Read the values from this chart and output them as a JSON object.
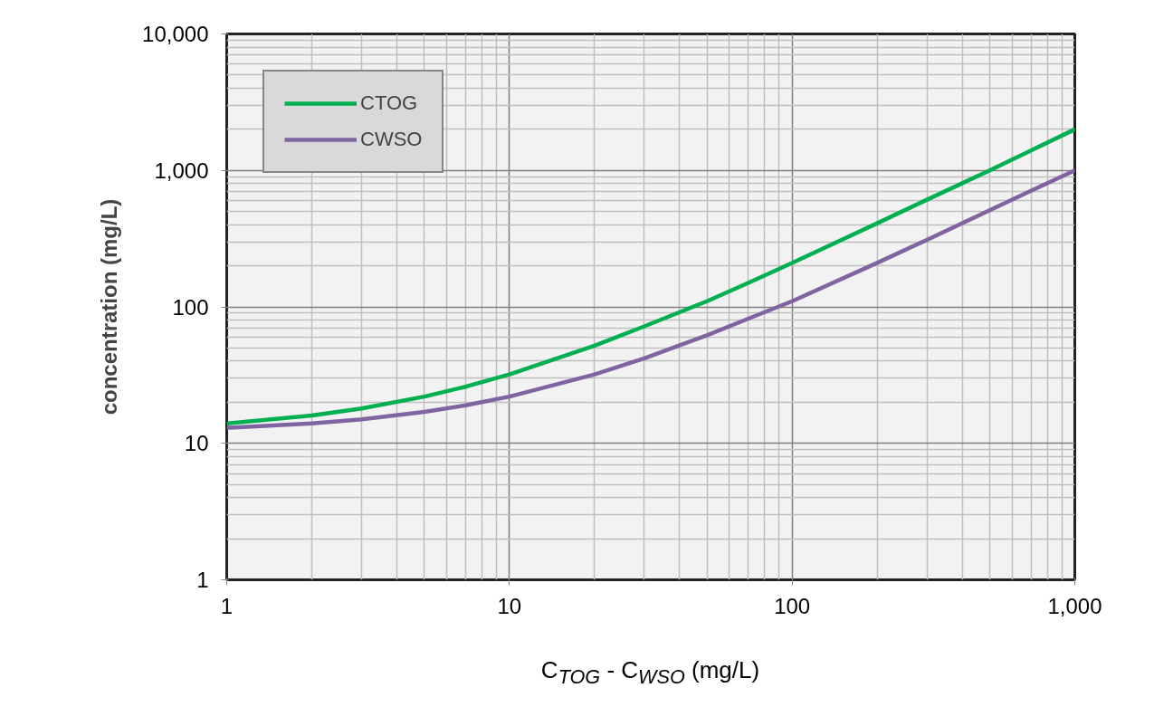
{
  "chart_data": {
    "type": "line",
    "xlabel": "C$_{TOG}$ - C$_{WSO}$ (mg/L)",
    "ylabel": "concentration (mg/L)",
    "log": "xy",
    "grid": true,
    "legend": "top left",
    "line_style": "solid",
    "marker": "none",
    "x": [
      1,
      2,
      3,
      5,
      7,
      10,
      20,
      30,
      50,
      70,
      100,
      200,
      300,
      500,
      700,
      1000
    ],
    "xlim": [
      1,
      1000
    ],
    "xticks": [
      1,
      10,
      100,
      {
        "value": 1000,
        "label": "1,000"
      }
    ],
    "ylim": [
      1,
      10000
    ],
    "yticks": [
      1,
      10,
      100,
      {
        "value": 1000,
        "label": "1,000"
      },
      {
        "value": 10000,
        "label": "10,000"
      }
    ],
    "series": [
      {
        "name": "CTOG",
        "color": "#00b050",
        "values": [
          14,
          16,
          18,
          22,
          26,
          32,
          52,
          72,
          110,
          150,
          210,
          410,
          610,
          1000,
          1400,
          2000
        ]
      },
      {
        "name": "CWSO",
        "color": "#8064a2",
        "values": [
          13,
          14,
          15,
          17,
          19,
          22,
          32,
          42,
          62,
          82,
          110,
          210,
          310,
          510,
          710,
          1000
        ]
      }
    ]
  }
}
